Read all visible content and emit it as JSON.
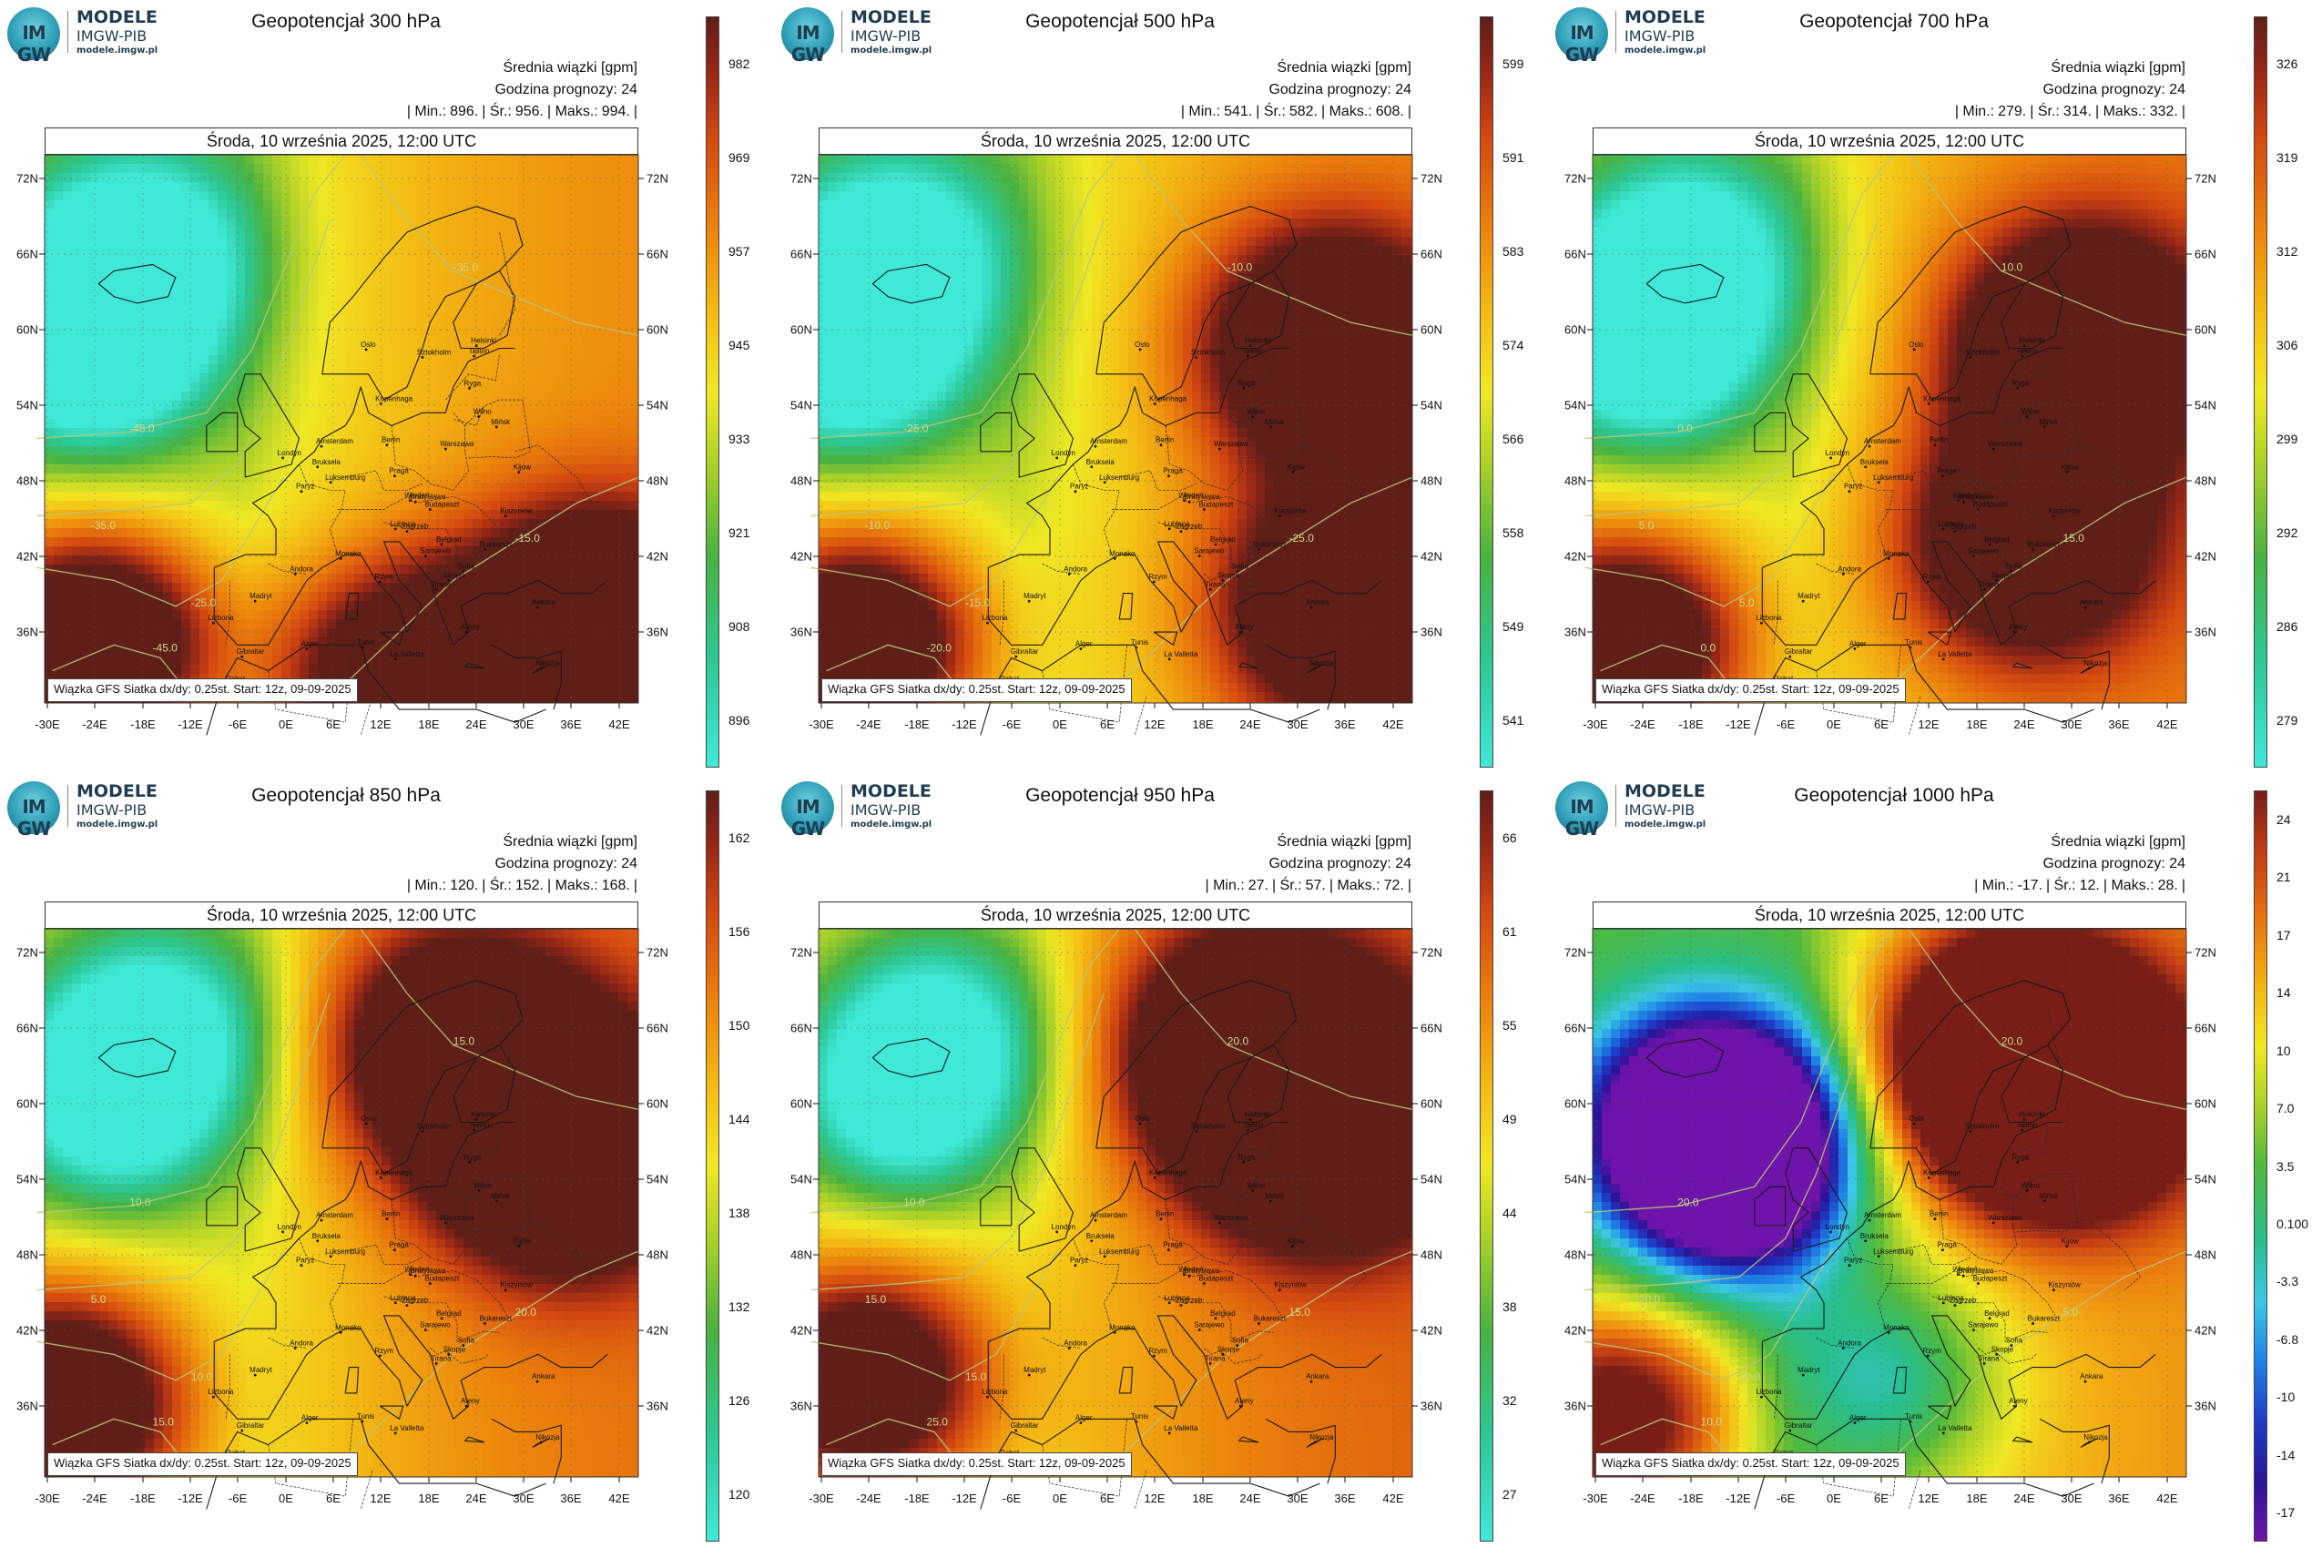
{
  "logo": {
    "glyph": "IM GW",
    "line1": "MODELE",
    "line2": "IMGW-PIB",
    "line3": "modele.imgw.pl"
  },
  "subtitle": "Średnia wiązki [gpm]",
  "forecast_hour": "Godzina prognozy: 24",
  "date": "Środa, 10 września 2025, 12:00 UTC",
  "footer": "Wiązka GFS Siatka dx/dy: 0.25st. Start: 12z, 09-09-2025",
  "lat_labels": [
    "72N",
    "66N",
    "60N",
    "54N",
    "48N",
    "42N",
    "36N"
  ],
  "lon_labels": [
    "-30E",
    "-24E",
    "-18E",
    "-12E",
    "-6E",
    "0E",
    "6E",
    "12E",
    "18E",
    "24E",
    "30E",
    "36E",
    "42E"
  ],
  "cities": [
    "Oslo",
    "Sztokholm",
    "Helsinki",
    "Tallinn",
    "Ryga",
    "Wilno",
    "Mińsk",
    "Kopenhaga",
    "Warszawa",
    "Amsterdam",
    "Londyn",
    "Berlin",
    "Praga",
    "Bruksela",
    "Luksemburg",
    "Paryż",
    "Wiedeń",
    "Bratysława",
    "Budapeszt",
    "Kiszyniów",
    "Zagrzeb",
    "Lublana",
    "Belgrad",
    "Bukareszt",
    "Sarajewo",
    "Sofia",
    "Skopje",
    "Tirana",
    "Rzym",
    "Andora",
    "Madryt",
    "Lizbona",
    "Monako",
    "Ateny",
    "Ankara",
    "Tunis",
    "Alger",
    "Rabat",
    "Gibraltar",
    "La Valletta",
    "Nikozja",
    "Kijów"
  ],
  "panels": [
    {
      "title": "Geopotencjał 300 hPa",
      "stats": {
        "min": "| Min.:",
        "min_val": "896.",
        "sr": "| Śr.:",
        "sr_val": "956.",
        "max": "| Maks.:",
        "max_val": "994.",
        "end": "|"
      },
      "colorbar": [
        "982",
        "969",
        "957",
        "945",
        "933",
        "921",
        "908",
        "896"
      ],
      "contour_labels": [
        "-45.0",
        "-35.0",
        "-25.0",
        "-35.0",
        "-15.0",
        "-45.0"
      ],
      "palette": "warm",
      "field": {
        "cold": [
          [
            -25,
            61,
            0.95
          ],
          [
            -18,
            68,
            0.55
          ]
        ],
        "hot": [
          [
            -25,
            37,
            0.95
          ],
          [
            40,
            38,
            0.9
          ],
          [
            15,
            34,
            0.7
          ]
        ],
        "bias": 0.42
      }
    },
    {
      "title": "Geopotencjał 500 hPa",
      "stats": {
        "min": "| Min.:",
        "min_val": "541.",
        "sr": "| Śr.:",
        "sr_val": "582.",
        "max": "| Maks.:",
        "max_val": "608.",
        "end": "|"
      },
      "colorbar": [
        "599",
        "591",
        "583",
        "574",
        "566",
        "558",
        "549",
        "541"
      ],
      "contour_labels": [
        "-25.0",
        "-10.0",
        "-15.0",
        "-10.0",
        "-25.0",
        "-20.0"
      ],
      "palette": "warm",
      "field": {
        "cold": [
          [
            -27,
            61,
            0.9
          ],
          [
            -20,
            68,
            0.5
          ]
        ],
        "hot": [
          [
            -26,
            37,
            0.9
          ],
          [
            35,
            60,
            0.8
          ],
          [
            38,
            40,
            0.8
          ]
        ],
        "bias": 0.42
      }
    },
    {
      "title": "Geopotencjał 700 hPa",
      "stats": {
        "min": "| Min.:",
        "min_val": "279.",
        "sr": "| Śr.:",
        "sr_val": "314.",
        "max": "| Maks.:",
        "max_val": "332.",
        "end": "|"
      },
      "colorbar": [
        "326",
        "319",
        "312",
        "306",
        "299",
        "292",
        "286",
        "279"
      ],
      "contour_labels": [
        "0.0",
        "5.0",
        "5.0",
        "10.0",
        "15.0",
        "0.0"
      ],
      "palette": "warm",
      "field": {
        "cold": [
          [
            -24,
            61,
            0.85
          ],
          [
            -18,
            68,
            0.5
          ]
        ],
        "hot": [
          [
            -27,
            37,
            0.85
          ],
          [
            32,
            60,
            0.85
          ],
          [
            25,
            45,
            0.7
          ]
        ],
        "bias": 0.45
      }
    },
    {
      "title": "Geopotencjał 850 hPa",
      "stats": {
        "min": "| Min.:",
        "min_val": "120.",
        "sr": "| Śr.:",
        "sr_val": "152.",
        "max": "| Maks.:",
        "max_val": "168.",
        "end": "|"
      },
      "colorbar": [
        "162",
        "156",
        "150",
        "144",
        "138",
        "132",
        "126",
        "120"
      ],
      "contour_labels": [
        "10.0",
        "5.0",
        "10.0",
        "15.0",
        "20.0",
        "15.0"
      ],
      "palette": "warm",
      "field": {
        "cold": [
          [
            -22,
            62,
            0.7
          ],
          [
            -16,
            68,
            0.45
          ]
        ],
        "hot": [
          [
            -29,
            38,
            0.9
          ],
          [
            36,
            58,
            0.9
          ],
          [
            22,
            66,
            0.7
          ]
        ],
        "bias": 0.47
      }
    },
    {
      "title": "Geopotencjał 950 hPa",
      "stats": {
        "min": "| Min.:",
        "min_val": "27.",
        "sr": "| Śr.:",
        "sr_val": "57.",
        "max": "| Maks.:",
        "max_val": "72.",
        "end": "|"
      },
      "colorbar": [
        "66",
        "61",
        "55",
        "49",
        "44",
        "38",
        "32",
        "27"
      ],
      "contour_labels": [
        "10.0",
        "15.0",
        "15.0",
        "20.0",
        "15.0",
        "25.0"
      ],
      "palette": "warm",
      "field": {
        "cold": [
          [
            -20,
            62,
            0.65
          ],
          [
            -15,
            68,
            0.4
          ]
        ],
        "hot": [
          [
            -25,
            40,
            0.75
          ],
          [
            34,
            60,
            0.9
          ],
          [
            24,
            66,
            0.7
          ]
        ],
        "bias": 0.5
      }
    },
    {
      "title": "Geopotencjał 1000 hPa",
      "stats": {
        "min": "| Min.:",
        "min_val": "-17.",
        "sr": "| Śr.:",
        "sr_val": "12.",
        "max": "| Maks.:",
        "max_val": "28.",
        "end": "|"
      },
      "colorbar": [
        "24",
        "21",
        "17",
        "14",
        "10",
        "7.0",
        "3.5",
        "0.100",
        "-3.3",
        "-6.8",
        "-10",
        "-14",
        "-17"
      ],
      "contour_labels": [
        "20.0",
        "20.0",
        "20.0",
        "20.0",
        "5.0",
        "10.0"
      ],
      "palette": "full",
      "field": {
        "cold": [
          [
            -16,
            60,
            1.0
          ],
          [
            -12,
            56,
            0.6
          ],
          [
            8,
            40,
            0.25
          ]
        ],
        "hot": [
          [
            -28,
            37,
            0.6
          ],
          [
            30,
            62,
            0.75
          ],
          [
            22,
            66,
            0.6
          ]
        ],
        "bias": 0.5
      }
    }
  ]
}
